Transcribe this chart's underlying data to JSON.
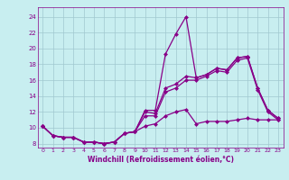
{
  "xlabel": "Windchill (Refroidissement éolien,°C)",
  "bg_color": "#c8eef0",
  "grid_color": "#a0c8d0",
  "line_color": "#880088",
  "xlim": [
    -0.5,
    23.5
  ],
  "ylim": [
    7.5,
    25.2
  ],
  "xticks": [
    0,
    1,
    2,
    3,
    4,
    5,
    6,
    7,
    8,
    9,
    10,
    11,
    12,
    13,
    14,
    15,
    16,
    17,
    18,
    19,
    20,
    21,
    22,
    23
  ],
  "yticks": [
    8,
    10,
    12,
    14,
    16,
    18,
    20,
    22,
    24
  ],
  "series": [
    [
      10.2,
      9.0,
      8.8,
      8.8,
      8.2,
      8.2,
      8.0,
      8.2,
      9.3,
      9.5,
      12.2,
      12.2,
      19.3,
      21.8,
      24.0,
      16.3,
      16.7,
      17.5,
      17.3,
      18.8,
      19.0,
      15.0,
      12.2,
      11.2
    ],
    [
      10.2,
      9.0,
      8.8,
      8.8,
      8.2,
      8.2,
      8.0,
      8.2,
      9.3,
      9.5,
      12.0,
      11.8,
      15.0,
      15.5,
      16.5,
      16.3,
      16.7,
      17.5,
      17.3,
      18.8,
      19.0,
      15.0,
      12.2,
      11.2
    ],
    [
      10.2,
      9.0,
      8.8,
      8.8,
      8.2,
      8.2,
      8.0,
      8.2,
      9.3,
      9.5,
      11.5,
      11.5,
      14.5,
      15.0,
      16.0,
      16.0,
      16.5,
      17.2,
      17.0,
      18.5,
      18.8,
      14.8,
      12.0,
      11.0
    ],
    [
      10.2,
      9.0,
      8.8,
      8.8,
      8.2,
      8.2,
      8.0,
      8.2,
      9.3,
      9.5,
      10.2,
      10.5,
      11.5,
      12.0,
      12.3,
      10.5,
      10.8,
      10.8,
      10.8,
      11.0,
      11.2,
      11.0,
      11.0,
      11.0
    ]
  ]
}
